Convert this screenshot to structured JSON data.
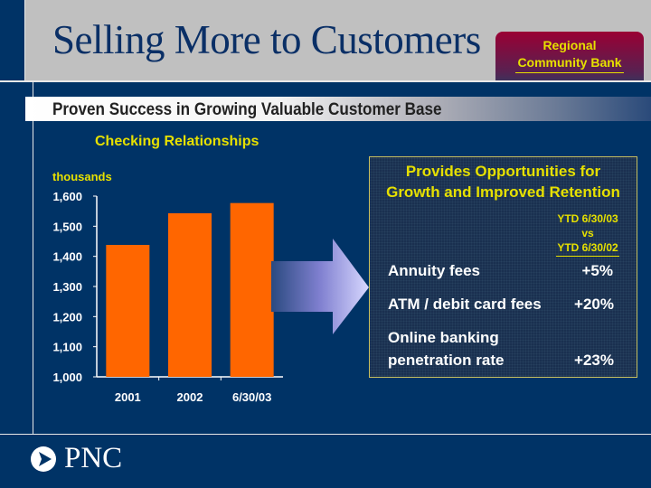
{
  "header": {
    "title": "Selling More to Customers",
    "badge": "Regional Community Bank"
  },
  "banner": "Proven Success in Growing Valuable Customer Base",
  "chart_data": {
    "type": "bar",
    "title": "Checking Relationships",
    "ylabel": "thousands",
    "categories": [
      "2001",
      "2002",
      "6/30/03"
    ],
    "values": [
      1438,
      1543,
      1577
    ],
    "ylim": [
      1000,
      1600
    ],
    "yticks": [
      "1,000",
      "1,100",
      "1,200",
      "1,300",
      "1,400",
      "1,500",
      "1,600"
    ],
    "bar_color": "#ff6600",
    "grid": false
  },
  "panel": {
    "heading1": "Provides Opportunities for",
    "heading2": "Growth and Improved Retention",
    "period1": "YTD 6/30/03",
    "period_vs": "vs",
    "period2": "YTD 6/30/02",
    "rows": [
      {
        "label": "Annuity fees",
        "value": "+5%"
      },
      {
        "label": "ATM / debit card fees",
        "value": "+20%"
      },
      {
        "label1": "Online banking",
        "label2": "penetration rate",
        "value": "+23%"
      }
    ]
  },
  "footer": {
    "logo": "PNC"
  },
  "colors": {
    "navy": "#003366",
    "accent": "#e6e000",
    "bar": "#ff6600"
  }
}
